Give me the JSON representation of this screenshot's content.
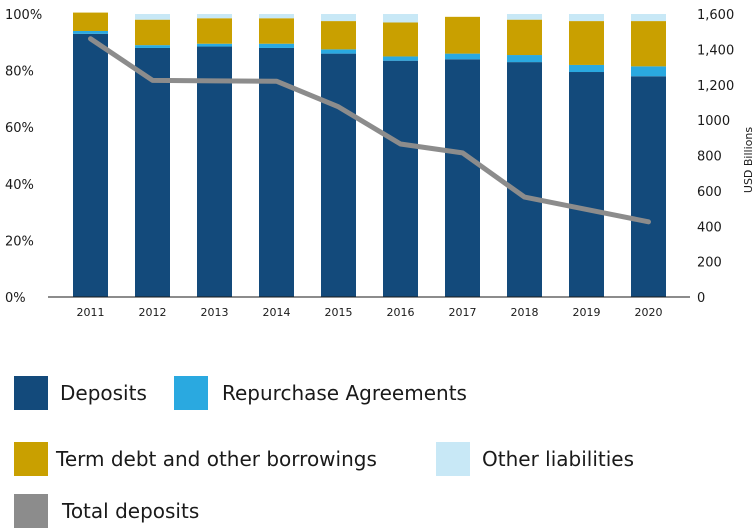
{
  "chart_data": {
    "type": "bar",
    "stacked": true,
    "percent_stacked": true,
    "categories": [
      "2011",
      "2012",
      "2013",
      "2014",
      "2015",
      "2016",
      "2017",
      "2018",
      "2019",
      "2020"
    ],
    "series": [
      {
        "name": "Deposits",
        "color": "#134a7b",
        "values": [
          93,
          88,
          88.5,
          88,
          86,
          83.5,
          84,
          83,
          79.5,
          78
        ]
      },
      {
        "name": "Repurchase Agreements",
        "color": "#2aa9e0",
        "values": [
          1,
          1,
          1,
          1.5,
          1.5,
          1.5,
          2,
          2.5,
          2.5,
          3.5
        ]
      },
      {
        "name": "Term debt and other borrowings",
        "color": "#c9a000",
        "values": [
          6.5,
          9,
          9,
          9,
          10,
          12,
          13,
          12.5,
          15.5,
          16
        ]
      },
      {
        "name": "Other liabilities",
        "color": "#c8e8f6",
        "values": [
          -0.5,
          2,
          1.5,
          1.5,
          2.5,
          3,
          -0.2,
          2,
          2.5,
          2.5
        ]
      }
    ],
    "line_series": {
      "name": "Total deposits",
      "color": "#8c8c8c",
      "axis": "right",
      "values": [
        1460,
        1225,
        1222,
        1220,
        1075,
        865,
        815,
        565,
        495,
        425
      ]
    },
    "y_left": {
      "ticks": [
        "0%",
        "20%",
        "40%",
        "60%",
        "80%",
        "100%"
      ],
      "ylim": [
        0,
        100
      ]
    },
    "y_right": {
      "label": "USD Billions",
      "ticks": [
        "0",
        "200",
        "400",
        "600",
        "800",
        "1000",
        "1,200",
        "1,400",
        "1,600"
      ],
      "ylim": [
        0,
        1600
      ]
    },
    "legend_position": "bottom",
    "grid": false
  },
  "legend": [
    {
      "label": "Deposits",
      "color": "#134a7b"
    },
    {
      "label": "Repurchase Agreements",
      "color": "#2aa9e0"
    },
    {
      "label": "Term debt and other borrowings",
      "color": "#c9a000"
    },
    {
      "label": "Other liabilities",
      "color": "#c8e8f6"
    },
    {
      "label": "Total deposits",
      "color": "#8c8c8c"
    }
  ]
}
